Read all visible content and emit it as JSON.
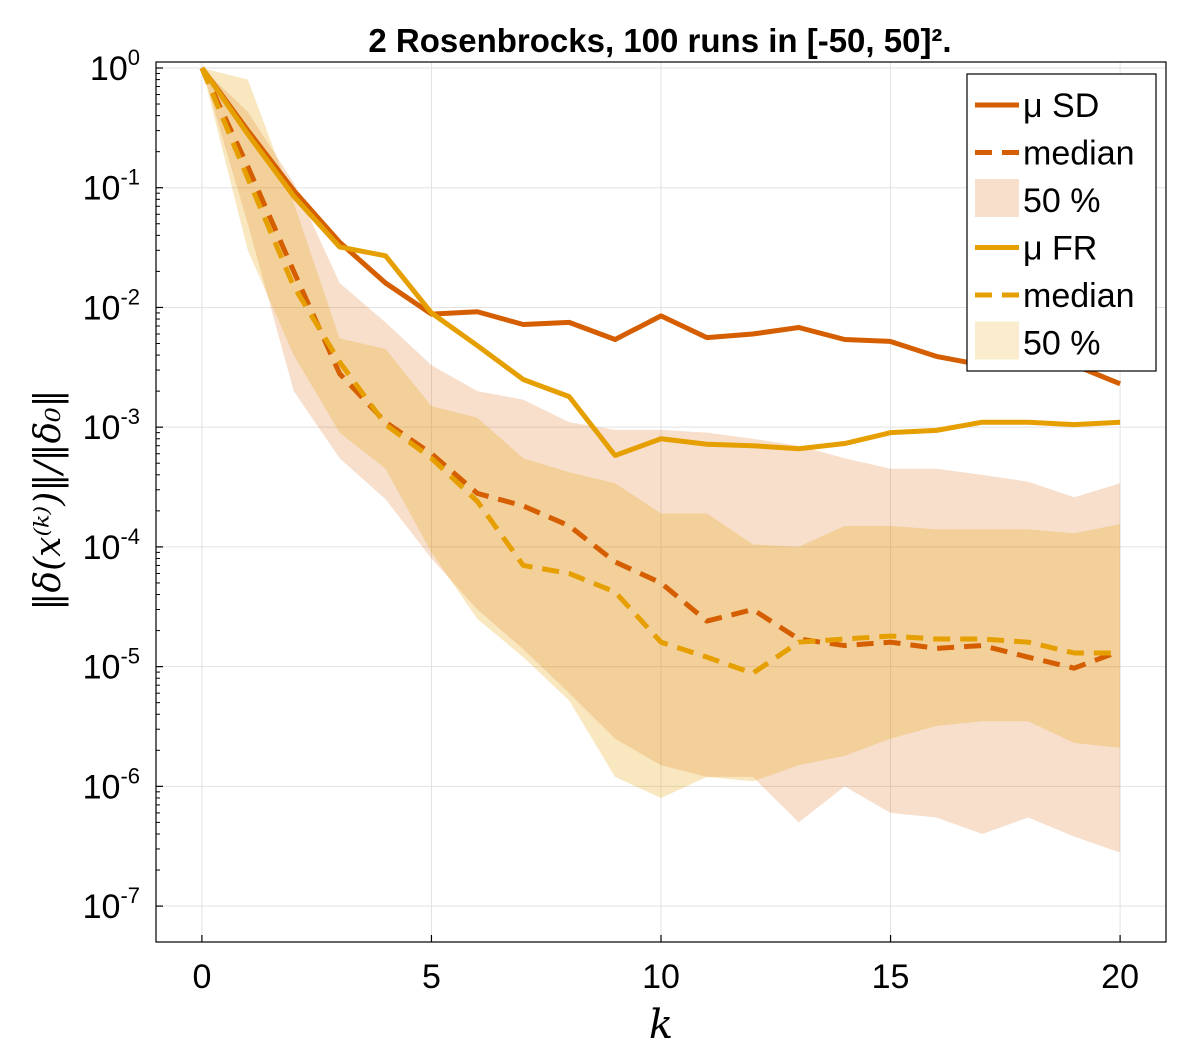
{
  "chart_data": {
    "type": "line",
    "title": "2 Rosenbrocks, 100 runs in [-50, 50]².",
    "xlabel": "k",
    "ylabel": "‖δ(x⁽ᵏ⁾)‖/‖δ₀‖",
    "xlim": [
      -1,
      21
    ],
    "ylim_log10": [
      -7.3,
      0.05
    ],
    "yscale": "log",
    "grid": true,
    "legend_position": "top-right",
    "x_ticks": [
      0,
      5,
      10,
      15,
      20
    ],
    "y_ticks": [
      {
        "base": "10",
        "exp": "0",
        "log10": 0
      },
      {
        "base": "10",
        "exp": "-1",
        "log10": -1
      },
      {
        "base": "10",
        "exp": "-2",
        "log10": -2
      },
      {
        "base": "10",
        "exp": "-3",
        "log10": -3
      },
      {
        "base": "10",
        "exp": "-4",
        "log10": -4
      },
      {
        "base": "10",
        "exp": "-5",
        "log10": -5
      },
      {
        "base": "10",
        "exp": "-6",
        "log10": -6
      },
      {
        "base": "10",
        "exp": "-7",
        "log10": -7
      }
    ],
    "x": [
      0,
      1,
      2,
      3,
      4,
      5,
      6,
      7,
      8,
      9,
      10,
      11,
      12,
      13,
      14,
      15,
      16,
      17,
      18,
      19,
      20
    ],
    "bands": [
      {
        "name": "50 %",
        "color": "#D55E00",
        "opacity": 0.2,
        "lower": [
          1.0,
          0.05,
          0.002,
          0.00055,
          0.00025,
          8e-05,
          3e-05,
          1.4e-05,
          6e-06,
          2.5e-06,
          1.5e-06,
          1.2e-06,
          1.2e-06,
          5e-07,
          1e-06,
          6e-07,
          5.5e-07,
          4e-07,
          5.5e-07,
          3.8e-07,
          2.8e-07
        ],
        "upper": [
          1.0,
          0.43,
          0.11,
          0.016,
          0.0075,
          0.0033,
          0.002,
          0.0017,
          0.0011,
          0.00095,
          0.00095,
          0.0009,
          0.0008,
          0.0007,
          0.00055,
          0.00045,
          0.00045,
          0.0004,
          0.00035,
          0.00026,
          0.00034
        ]
      },
      {
        "name": "50 %",
        "color": "#E69F00",
        "opacity": 0.25,
        "lower": [
          1.0,
          0.03,
          0.004,
          0.0009,
          0.00045,
          9e-05,
          2.5e-05,
          1.2e-05,
          5.2e-06,
          1.2e-06,
          8e-07,
          1.2e-06,
          1.1e-06,
          1.5e-06,
          1.8e-06,
          2.5e-06,
          3.2e-06,
          3.5e-06,
          3.5e-06,
          2.3e-06,
          2.1e-06
        ],
        "upper": [
          1.0,
          0.8,
          0.075,
          0.0055,
          0.0045,
          0.0015,
          0.0012,
          0.00055,
          0.00042,
          0.00034,
          0.00019,
          0.00019,
          0.000105,
          0.0001,
          0.00015,
          0.00015,
          0.00014,
          0.00014,
          0.00014,
          0.00013,
          0.000155
        ]
      }
    ],
    "series": [
      {
        "name": "μ SD",
        "color": "#D55E00",
        "dash": "solid",
        "values": [
          1.0,
          0.3,
          0.095,
          0.035,
          0.016,
          0.0088,
          0.0092,
          0.0072,
          0.0075,
          0.0054,
          0.0085,
          0.0056,
          0.006,
          0.0068,
          0.0054,
          0.0052,
          0.0039,
          0.0033,
          0.0035,
          0.0033,
          0.0023
        ]
      },
      {
        "name": "median",
        "color": "#D55E00",
        "dash": "dashed",
        "values": [
          1.0,
          0.15,
          0.02,
          0.0028,
          0.0011,
          0.0006,
          0.00028,
          0.00022,
          0.00015,
          7.5e-05,
          5e-05,
          2.4e-05,
          3e-05,
          1.7e-05,
          1.5e-05,
          1.6e-05,
          1.42e-05,
          1.5e-05,
          1.2e-05,
          9.7e-06,
          1.35e-05
        ]
      },
      {
        "name": "μ FR",
        "color": "#E69F00",
        "dash": "solid",
        "values": [
          1.0,
          0.28,
          0.085,
          0.032,
          0.027,
          0.009,
          0.0048,
          0.0025,
          0.0018,
          0.00058,
          0.0008,
          0.00072,
          0.0007,
          0.00066,
          0.00073,
          0.0009,
          0.00094,
          0.0011,
          0.0011,
          0.00105,
          0.0011
        ]
      },
      {
        "name": "median",
        "color": "#E69F00",
        "dash": "dashed",
        "values": [
          1.0,
          0.12,
          0.015,
          0.0035,
          0.00105,
          0.00055,
          0.00024,
          7e-05,
          6e-05,
          4.2e-05,
          1.6e-05,
          1.2e-05,
          8.8e-06,
          1.6e-05,
          1.7e-05,
          1.8e-05,
          1.7e-05,
          1.7e-05,
          1.6e-05,
          1.3e-05,
          1.3e-05
        ]
      }
    ],
    "legend": [
      {
        "label": "μ SD",
        "color": "#D55E00",
        "kind": "line"
      },
      {
        "label": "median",
        "color": "#D55E00",
        "kind": "dashed"
      },
      {
        "label": "50 %",
        "color": "#D55E00",
        "kind": "band"
      },
      {
        "label": "μ FR",
        "color": "#E69F00",
        "kind": "line"
      },
      {
        "label": "median",
        "color": "#E69F00",
        "kind": "dashed"
      },
      {
        "label": "50 %",
        "color": "#E69F00",
        "kind": "band"
      }
    ]
  }
}
